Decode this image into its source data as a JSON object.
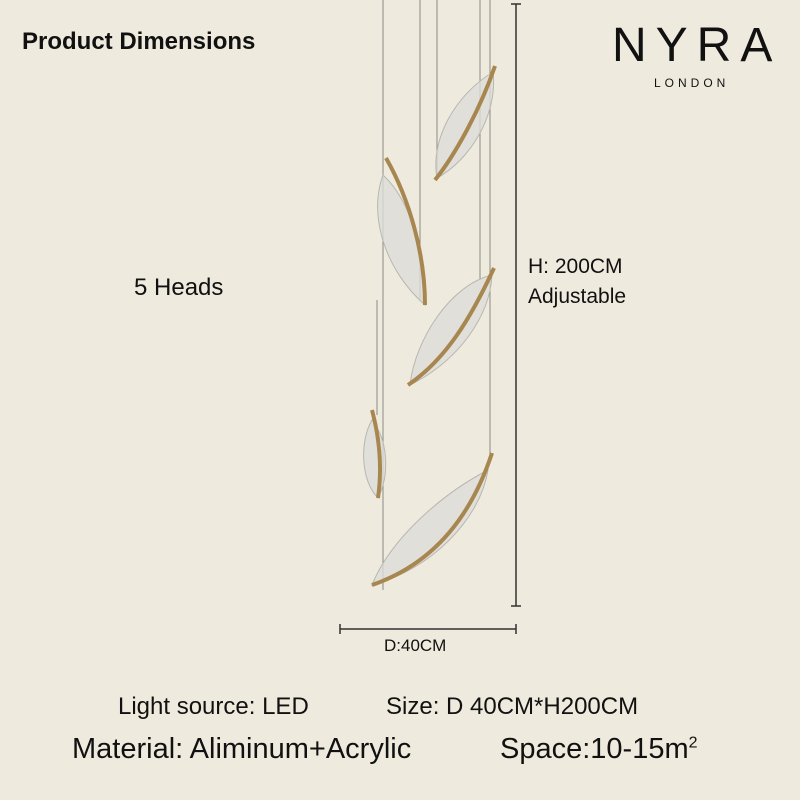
{
  "header": {
    "title": "Product Dimensions"
  },
  "brand": {
    "name": "NYRA",
    "location": "LONDON"
  },
  "product": {
    "heads": "5 Heads",
    "height": {
      "label": "H: 200CM",
      "note": "Adjustable"
    },
    "diameter": "D:40CM"
  },
  "specs": {
    "light_source": "Light source: LED",
    "size": "Size: D 40CM*H200CM",
    "material": "Material: Aliminum+Acrylic",
    "space": {
      "text": "Space:10-15m",
      "superscript": "2"
    }
  }
}
